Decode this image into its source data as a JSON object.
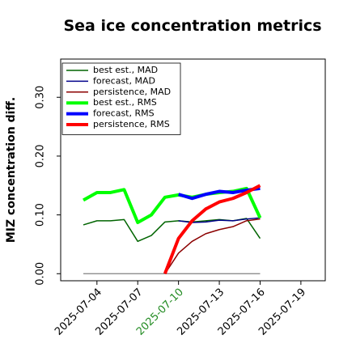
{
  "chart_data": {
    "type": "line",
    "title": "Sea ice concentration metrics",
    "y_label": "MIZ concentration diff.",
    "x": [
      "2025-07-03",
      "2025-07-04",
      "2025-07-05",
      "2025-07-06",
      "2025-07-07",
      "2025-07-08",
      "2025-07-09",
      "2025-07-10",
      "2025-07-11",
      "2025-07-12",
      "2025-07-13",
      "2025-07-14",
      "2025-07-15",
      "2025-07-16"
    ],
    "series": [
      {
        "name": "best est., MAD",
        "color": "#006400",
        "width": 1.5,
        "values": [
          0.083,
          0.09,
          0.09,
          0.092,
          0.055,
          0.065,
          0.088,
          0.09,
          0.088,
          0.09,
          0.092,
          0.09,
          0.094,
          0.06
        ]
      },
      {
        "name": "forecast,  MAD",
        "color": "#00008b",
        "width": 1.5,
        "values": [
          null,
          null,
          null,
          null,
          null,
          null,
          null,
          0.09,
          0.087,
          0.088,
          0.091,
          0.09,
          0.093,
          0.095
        ]
      },
      {
        "name": "persistence, MAD",
        "color": "#8b0000",
        "width": 1.5,
        "values": [
          null,
          null,
          null,
          null,
          null,
          null,
          0.0,
          0.035,
          0.055,
          0.068,
          0.075,
          0.08,
          0.09,
          0.093
        ]
      },
      {
        "name": "best est., RMS",
        "color": "#00ff00",
        "width": 4,
        "values": [
          0.125,
          0.138,
          0.138,
          0.143,
          0.087,
          0.1,
          0.13,
          0.134,
          0.13,
          0.135,
          0.138,
          0.14,
          0.145,
          0.095
        ]
      },
      {
        "name": "forecast,  RMS",
        "color": "#0000ff",
        "width": 4,
        "values": [
          null,
          null,
          null,
          null,
          null,
          null,
          null,
          0.135,
          0.128,
          0.135,
          0.14,
          0.138,
          0.142,
          0.145
        ]
      },
      {
        "name": "persistence, RMS",
        "color": "#ff0000",
        "width": 4,
        "values": [
          null,
          null,
          null,
          null,
          null,
          null,
          0.0,
          0.06,
          0.09,
          0.11,
          0.122,
          0.128,
          0.138,
          0.15
        ]
      }
    ],
    "zero_line": {
      "x": [
        "2025-07-03",
        "2025-07-16"
      ],
      "values": [
        0,
        0
      ],
      "color": "#808080"
    },
    "xlim": [
      "2025-07-01T08:00Z",
      "2025-07-20T19:00Z"
    ],
    "xticks": [
      "2025-07-04",
      "2025-07-07",
      "2025-07-10",
      "2025-07-13",
      "2025-07-16",
      "2025-07-19"
    ],
    "highlight_xtick": "2025-07-10",
    "highlight_color": "#228b22",
    "ylim": [
      -0.012,
      0.365
    ],
    "yticks": [
      {
        "value": 0,
        "label": "0.00"
      },
      {
        "value": 0.1,
        "label": "0.10"
      },
      {
        "value": 0.2,
        "label": "0.20"
      },
      {
        "value": 0.3,
        "label": "0.30"
      }
    ],
    "legend": "upper left",
    "grid": false
  }
}
